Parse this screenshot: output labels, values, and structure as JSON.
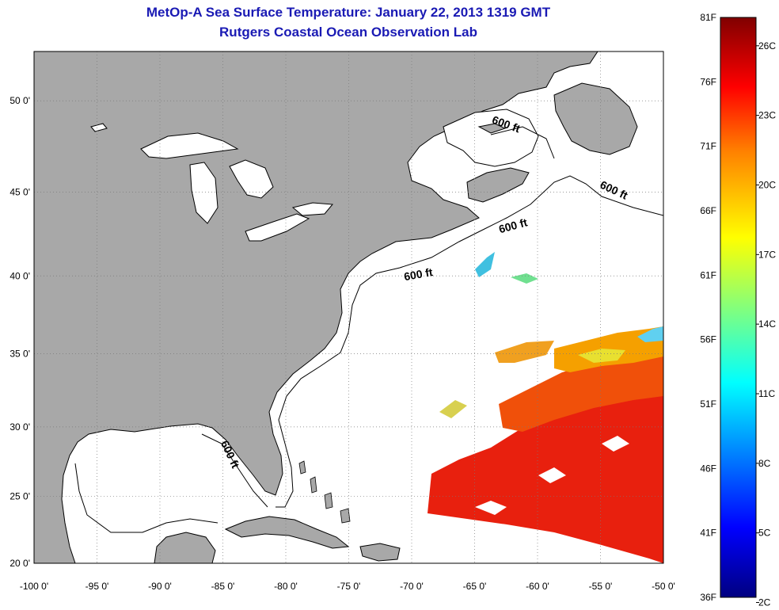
{
  "header": {
    "title": "MetOp-A Sea Surface Temperature:  January 22, 2013 1319 GMT",
    "subtitle": "Rutgers Coastal Ocean Observation Lab"
  },
  "map": {
    "lon_range": [
      -100,
      -50
    ],
    "lat_range": [
      20,
      52.5
    ],
    "lon_ticks": [
      "-100 0'",
      "-95 0'",
      "-90 0'",
      "-85 0'",
      "-80 0'",
      "-75 0'",
      "-70 0'",
      "-65 0'",
      "-60 0'",
      "-55 0'",
      "-50 0'"
    ],
    "lat_ticks": [
      "20 0'",
      "25 0'",
      "30 0'",
      "35 0'",
      "40 0'",
      "45 0'",
      "50 0'"
    ],
    "isobath_labels": [
      "600 ft",
      "600 ft",
      "600 ft",
      "600 ft",
      "600 ft"
    ],
    "colors": {
      "land": "#a8a8a8",
      "ocean": "#ffffff",
      "grid": "#7a7a7a"
    }
  },
  "colorbar": {
    "fahrenheit_labels": [
      "81F",
      "76F",
      "71F",
      "66F",
      "61F",
      "56F",
      "51F",
      "46F",
      "41F",
      "36F"
    ],
    "celsius_labels": [
      "26C",
      "23C",
      "20C",
      "17C",
      "14C",
      "11C",
      "8C",
      "5C",
      "2C"
    ],
    "colors": [
      "#000080",
      "#0000ff",
      "#00ffff",
      "#ffff00",
      "#ff8000",
      "#ff0000",
      "#800000"
    ]
  }
}
